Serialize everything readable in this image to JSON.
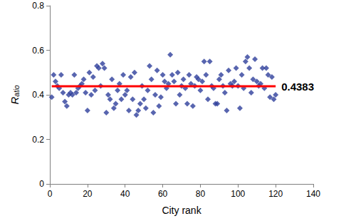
{
  "chart_data": {
    "type": "scatter",
    "x_label": "City rank",
    "y_label": "Ratio",
    "x": [
      1,
      2,
      3,
      4,
      5,
      6,
      7,
      8,
      9,
      10,
      11,
      12,
      13,
      14,
      15,
      16,
      17,
      18,
      19,
      20,
      21,
      22,
      23,
      24,
      25,
      26,
      27,
      28,
      29,
      30,
      31,
      32,
      33,
      34,
      35,
      36,
      37,
      38,
      39,
      40,
      41,
      42,
      43,
      44,
      45,
      46,
      47,
      48,
      49,
      50,
      51,
      52,
      53,
      54,
      55,
      56,
      57,
      58,
      59,
      60,
      61,
      62,
      63,
      64,
      65,
      66,
      67,
      68,
      69,
      70,
      71,
      72,
      73,
      74,
      75,
      76,
      77,
      78,
      79,
      80,
      81,
      82,
      83,
      84,
      85,
      86,
      87,
      88,
      89,
      90,
      91,
      92,
      93,
      94,
      95,
      96,
      97,
      98,
      99,
      100,
      101,
      102,
      103,
      104,
      105,
      106,
      107,
      108,
      109,
      110,
      111,
      112,
      113,
      114,
      115,
      116,
      117,
      118,
      119,
      120
    ],
    "values": [
      0.39,
      0.49,
      0.46,
      0.44,
      0.43,
      0.49,
      0.41,
      0.37,
      0.35,
      0.4,
      0.41,
      0.4,
      0.49,
      0.41,
      0.43,
      0.44,
      0.45,
      0.47,
      0.41,
      0.33,
      0.5,
      0.4,
      0.48,
      0.42,
      0.53,
      0.52,
      0.44,
      0.54,
      0.52,
      0.32,
      0.4,
      0.38,
      0.47,
      0.34,
      0.36,
      0.42,
      0.45,
      0.38,
      0.49,
      0.4,
      0.42,
      0.33,
      0.48,
      0.38,
      0.5,
      0.31,
      0.33,
      0.36,
      0.44,
      0.38,
      0.34,
      0.42,
      0.53,
      0.47,
      0.32,
      0.4,
      0.51,
      0.35,
      0.39,
      0.49,
      0.46,
      0.43,
      0.45,
      0.58,
      0.49,
      0.46,
      0.36,
      0.5,
      0.4,
      0.44,
      0.47,
      0.43,
      0.36,
      0.49,
      0.45,
      0.35,
      0.44,
      0.48,
      0.47,
      0.42,
      0.46,
      0.55,
      0.49,
      0.38,
      0.55,
      0.44,
      0.43,
      0.36,
      0.36,
      0.47,
      0.49,
      0.44,
      0.41,
      0.33,
      0.51,
      0.45,
      0.44,
      0.46,
      0.52,
      0.44,
      0.34,
      0.49,
      0.43,
      0.55,
      0.57,
      0.52,
      0.41,
      0.47,
      0.56,
      0.46,
      0.44,
      0.45,
      0.52,
      0.43,
      0.52,
      0.49,
      0.39,
      0.48,
      0.38,
      0.4
    ],
    "color": "#2e3f9b",
    "marker": "diamond",
    "xlim": [
      0,
      140
    ],
    "xticks": [
      0,
      20,
      40,
      60,
      80,
      100,
      120,
      140
    ],
    "ylim": [
      0,
      0.8
    ],
    "yticks": [
      0,
      0.2,
      0.4,
      0.6,
      0.8
    ],
    "grid": false,
    "mean_line": {
      "value": 0.4383,
      "x": [
        1,
        120
      ],
      "color": "#ff0000"
    }
  }
}
